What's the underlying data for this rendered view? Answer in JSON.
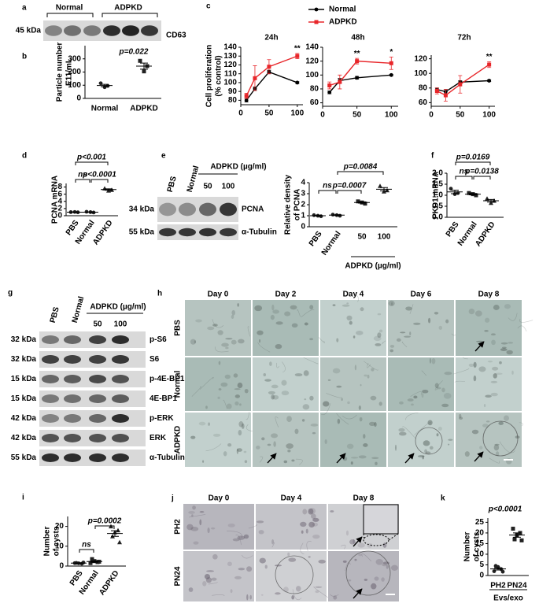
{
  "blots": [
    {
      "letter": "a",
      "groups": [
        "Normal",
        "ADPKD"
      ],
      "rows": [
        {
          "kda": "45 kDa",
          "protein": "CD63"
        }
      ]
    },
    {
      "letter": "e",
      "columns": [
        "PBS",
        "Normal"
      ],
      "group": "ADPKD (µg/ml)",
      "doses": [
        "50",
        "100"
      ],
      "rows": [
        {
          "kda": "34 kDa",
          "protein": "PCNA"
        },
        {
          "kda": "55 kDa",
          "protein": "α-Tubulin"
        }
      ]
    },
    {
      "letter": "g",
      "columns": [
        "PBS",
        "Normal"
      ],
      "group": "ADPKD (µg/ml)",
      "doses": [
        "50",
        "100"
      ],
      "rows": [
        {
          "kda": "32 kDa",
          "protein": "p-S6"
        },
        {
          "kda": "32 kDa",
          "protein": "S6"
        },
        {
          "kda": "15 kDa",
          "protein": "p-4E-BP1"
        },
        {
          "kda": "15 kDa",
          "protein": "4E-BP1"
        },
        {
          "kda": "42 kDa",
          "protein": "p-ERK"
        },
        {
          "kda": "42 kDa",
          "protein": "ERK"
        },
        {
          "kda": "55 kDa",
          "protein": "α-Tubulin"
        }
      ]
    }
  ],
  "images": [
    {
      "letter": "h",
      "columns": [
        "Day 0",
        "Day 2",
        "Day 4",
        "Day 6",
        "Day 8"
      ],
      "rows": [
        "PBS",
        "Normal",
        "ADPKD"
      ]
    },
    {
      "letter": "j",
      "columns": [
        "Day 0",
        "Day 4",
        "Day 8"
      ],
      "rows": [
        "PH2",
        "PN24"
      ]
    }
  ],
  "chart_data": [
    {
      "type": "dot",
      "letter": "b",
      "ylabel": [
        "Particle number",
        "E11/mL"
      ],
      "categories": [
        "Normal",
        "ADPKD"
      ],
      "points": [
        [
          115,
          95,
          85
        ],
        [
          285,
          245,
          205
        ]
      ],
      "means": [
        98,
        245
      ],
      "errors": [
        9,
        23
      ],
      "ylim": [
        0,
        400
      ],
      "yticks": [
        0,
        100,
        200,
        300
      ],
      "annotations": [
        "p=0.022"
      ]
    },
    {
      "type": "line",
      "letter": "c",
      "title": "24h",
      "ylabel": [
        "Cell proliferation",
        "(% control)"
      ],
      "x": [
        10,
        25,
        50,
        100
      ],
      "xlim": [
        0,
        110
      ],
      "xticks": [
        0,
        50,
        100
      ],
      "ylim": [
        75,
        140
      ],
      "yticks": [
        80,
        90,
        100,
        110,
        120,
        130,
        140
      ],
      "series": [
        {
          "name": "Normal",
          "color": "#000000",
          "values": [
            80,
            93,
            112,
            100
          ],
          "errors": [
            2,
            2,
            2,
            1
          ]
        },
        {
          "name": "ADPKD",
          "color": "#e8262a",
          "values": [
            85,
            105,
            118,
            130
          ],
          "errors": [
            3,
            14,
            8,
            3
          ]
        }
      ],
      "annotations": [
        "**"
      ]
    },
    {
      "type": "line",
      "title": "48h",
      "x": [
        10,
        25,
        50,
        100
      ],
      "xlim": [
        0,
        110
      ],
      "xticks": [
        0,
        50,
        100
      ],
      "ylim": [
        55,
        140
      ],
      "yticks": [
        60,
        80,
        100,
        120,
        140
      ],
      "series": [
        {
          "color": "#000000",
          "values": [
            75,
            92,
            96,
            100
          ],
          "errors": [
            2,
            3,
            2,
            1
          ]
        },
        {
          "color": "#e8262a",
          "values": [
            85,
            90,
            120,
            117
          ],
          "errors": [
            5,
            10,
            4,
            9
          ]
        }
      ],
      "annotations": [
        "**",
        "*"
      ]
    },
    {
      "type": "line",
      "title": "72h",
      "x": [
        10,
        25,
        50,
        100
      ],
      "xlim": [
        0,
        110
      ],
      "xticks": [
        0,
        50,
        100
      ],
      "ylim": [
        55,
        125
      ],
      "yticks": [
        60,
        80,
        100,
        120
      ],
      "series": [
        {
          "color": "#000000",
          "values": [
            78,
            75,
            88,
            90
          ],
          "errors": [
            2,
            3,
            2,
            1
          ]
        },
        {
          "color": "#e8262a",
          "values": [
            76,
            70,
            85,
            112
          ],
          "errors": [
            4,
            8,
            12,
            4
          ]
        }
      ],
      "annotations": [
        "**"
      ]
    },
    {
      "type": "dot",
      "letter": "d",
      "ylabel": [
        "PCNA mRNA"
      ],
      "categories": [
        "PBS",
        "Normal",
        "ADPKD"
      ],
      "points": [
        [
          1.0,
          0.95,
          1.05
        ],
        [
          1.1,
          0.9,
          1.0
        ],
        [
          7.6,
          7.2,
          7.0
        ]
      ],
      "means": [
        1.0,
        1.0,
        7.3
      ],
      "errors": [
        0.03,
        0.05,
        0.2
      ],
      "ylim": [
        0,
        9
      ],
      "yticks": [
        0,
        2,
        4,
        6,
        8
      ],
      "annotations": [
        "p<0.001",
        "ns",
        "p<0.0001"
      ]
    },
    {
      "type": "dot",
      "ylabel": [
        "Relative density",
        "of PCNA"
      ],
      "categories": [
        "PBS",
        "Normal",
        "50",
        "100"
      ],
      "group_label": "ADPKD (µg/ml)",
      "points": [
        [
          1.05,
          0.95,
          1.0
        ],
        [
          1.1,
          1.0,
          1.05
        ],
        [
          2.3,
          2.1,
          2.2
        ],
        [
          3.7,
          3.3,
          3.2
        ]
      ],
      "means": [
        1.0,
        1.05,
        2.2,
        3.4
      ],
      "errors": [
        0.03,
        0.03,
        0.06,
        0.15
      ],
      "ylim": [
        0,
        4
      ],
      "yticks": [
        0,
        1,
        2,
        3,
        4
      ],
      "annotations": [
        "p=0.0084",
        "ns",
        "p=0.0007"
      ]
    },
    {
      "type": "dot",
      "letter": "f",
      "ylabel": [
        "PKD1 mRNA"
      ],
      "categories": [
        "PBS",
        "Normal",
        "ADPKD"
      ],
      "points": [
        [
          1.3,
          1.1,
          1.05
        ],
        [
          1.1,
          1.0,
          1.05
        ],
        [
          0.85,
          0.75,
          0.65
        ]
      ],
      "means": [
        1.15,
        1.05,
        0.75
      ],
      "errors": [
        0.08,
        0.03,
        0.06
      ],
      "ylim": [
        0,
        2
      ],
      "yticks": [
        {
          "value": 0,
          "label": "0.0"
        },
        0.5,
        {
          "value": 1,
          "label": "1.0"
        },
        1.5,
        {
          "value": 2,
          "label": "2.0"
        }
      ],
      "annotations": [
        "p=0.0169",
        "ns",
        "p=0.0138"
      ]
    },
    {
      "type": "dot",
      "letter": "i",
      "ylabel": [
        "Number",
        "of cysts"
      ],
      "categories": [
        "PBS",
        "Normal",
        "ADPKD"
      ],
      "points": [
        [
          1.5,
          1.2,
          1.4,
          1.6,
          1.8
        ],
        [
          1.5,
          2.0,
          2.5,
          3.5,
          2.2
        ],
        [
          20,
          18,
          17,
          15,
          12
        ]
      ],
      "means": [
        1.5,
        2.3,
        16.4
      ],
      "errors": [
        0.1,
        0.35,
        1.4
      ],
      "ylim": [
        0,
        25
      ],
      "yticks": [
        0,
        10,
        20
      ],
      "annotations": [
        "ns",
        "p=0.0002"
      ]
    },
    {
      "type": "dot",
      "letter": "k",
      "ylabel": [
        "Number",
        "of cysts"
      ],
      "categories": [
        "PH2",
        "PN24"
      ],
      "group_label": "Evs/exo",
      "points": [
        [
          2,
          3,
          4,
          4.5,
          1.8
        ],
        [
          22,
          20,
          19,
          17,
          16.5
        ]
      ],
      "means": [
        3.1,
        19
      ],
      "errors": [
        0.5,
        1
      ],
      "ylim": [
        0,
        27
      ],
      "yticks": [
        0,
        5,
        10,
        15,
        20,
        25
      ],
      "annotations": [
        "p<0.0001"
      ]
    }
  ]
}
